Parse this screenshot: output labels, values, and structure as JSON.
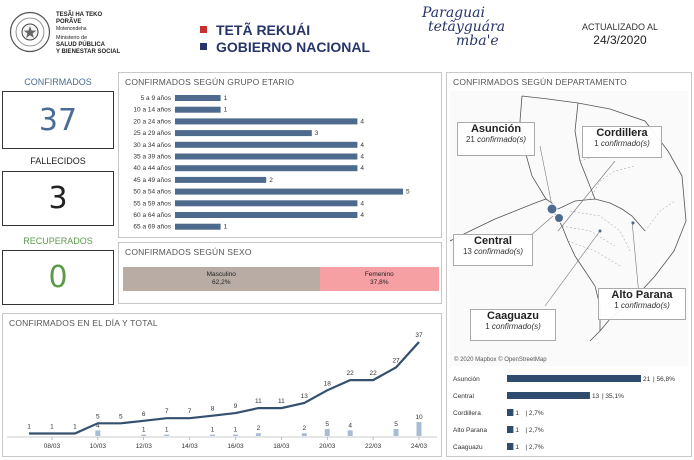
{
  "header": {
    "ministry_line1": "TESÃI HA TEKO",
    "ministry_line2": "PORÃVE",
    "ministry_line3": "Motenondeha",
    "ministry_line4": "Ministerio de",
    "ministry_line5": "SALUD PÚBLICA",
    "ministry_line6": "Y BIENESTAR SOCIAL",
    "gov_line1": "TETÃ REKUÁI",
    "gov_line2": "GOBIERNO NACIONAL",
    "brand_line1": "Paraguai",
    "brand_line2": "tetãyguára",
    "brand_line3": "mba'e",
    "updated_label": "ACTUALIZADO AL",
    "updated_date": "24/3/2020",
    "colors": {
      "red": "#c8302d",
      "navy": "#27356b"
    }
  },
  "kpis": {
    "confirmed_label": "CONFIRMADOS",
    "confirmed_value": "37",
    "confirmed_color": "#4a6c95",
    "deaths_label": "FALLECIDOS",
    "deaths_value": "3",
    "recovered_label": "RECUPERADOS",
    "recovered_value": "0",
    "recovered_color": "#5b9a4a"
  },
  "age_panel": {
    "title": "CONFIRMADOS SEGÚN GRUPO ETARIO"
  },
  "sex_panel": {
    "title": "CONFIRMADOS SEGÚN SEXO",
    "male_label": "Masculino",
    "male_pct": "62,2%",
    "female_label": "Femenino",
    "female_pct": "37,8%"
  },
  "daily_panel": {
    "title": "CONFIRMADOS EN EL DÍA Y TOTAL"
  },
  "dept_panel": {
    "title": "CONFIRMADOS SEGÚN DEPARTAMENTO",
    "attribution": "© 2020 Mapbox © OpenStreetMap",
    "callouts": [
      {
        "name": "Asunción",
        "count": "21",
        "unit": "confirmado(s)"
      },
      {
        "name": "Cordillera",
        "count": "1",
        "unit": "confirmado(s)"
      },
      {
        "name": "Central",
        "count": "13",
        "unit": "confirmado(s)"
      },
      {
        "name": "Alto Parana",
        "count": "1",
        "unit": "confirmado(s)"
      },
      {
        "name": "Caaguazu",
        "count": "1",
        "unit": "confirmado(s)"
      }
    ]
  },
  "chart_data": [
    {
      "type": "bar",
      "orientation": "horizontal",
      "categories": [
        "5 a 9 años",
        "10 a 14 años",
        "20 a 24 años",
        "25 a 29 años",
        "30 a 34 años",
        "35 a 39 años",
        "40 a 44 años",
        "45 a 49 años",
        "50 a 54 años",
        "55 a 59 años",
        "60 a 64 años",
        "65 a 69 años"
      ],
      "values": [
        1,
        1,
        4,
        3,
        4,
        4,
        4,
        2,
        5,
        4,
        4,
        1
      ],
      "title": "CONFIRMADOS SEGÚN GRUPO ETARIO",
      "xlim": [
        0,
        5
      ],
      "color": "#4e6a8c"
    },
    {
      "type": "bar",
      "orientation": "stacked-horizontal",
      "categories": [
        "Masculino",
        "Femenino"
      ],
      "values": [
        62.2,
        37.8
      ],
      "colors": [
        "#b8aca4",
        "#f6a0a4"
      ],
      "title": "CONFIRMADOS SEGÚN SEXO"
    },
    {
      "type": "line",
      "title": "CONFIRMADOS EN EL DÍA Y TOTAL",
      "x": [
        "07/03",
        "08/03",
        "09/03",
        "10/03",
        "11/03",
        "12/03",
        "13/03",
        "14/03",
        "15/03",
        "16/03",
        "17/03",
        "18/03",
        "19/03",
        "20/03",
        "21/03",
        "22/03",
        "23/03",
        "24/03"
      ],
      "tick_labels": [
        "08/03",
        "10/03",
        "12/03",
        "14/03",
        "16/03",
        "18/03",
        "20/03",
        "22/03",
        "24/03"
      ],
      "series": [
        {
          "values": [
            1,
            1,
            1,
            5,
            5,
            6,
            7,
            7,
            8,
            9,
            11,
            11,
            13,
            18,
            22,
            22,
            27,
            37
          ],
          "color": "#33506f"
        },
        {
          "type": "bar",
          "values": [
            null,
            null,
            null,
            4,
            null,
            1,
            1,
            null,
            1,
            1,
            2,
            null,
            2,
            5,
            4,
            null,
            5,
            10
          ],
          "color": "#a9bcd4"
        }
      ]
    },
    {
      "type": "bar",
      "orientation": "horizontal",
      "categories": [
        "Asunción",
        "Central",
        "Cordillera",
        "Alto Parana",
        "Caaguazu"
      ],
      "values": [
        21,
        13,
        1,
        1,
        1
      ],
      "percent_labels": [
        "56,8%",
        "35,1%",
        "2,7%",
        "2,7%",
        "2,7%"
      ],
      "xlim": [
        0,
        21
      ],
      "color": "#2f4c6e"
    }
  ]
}
